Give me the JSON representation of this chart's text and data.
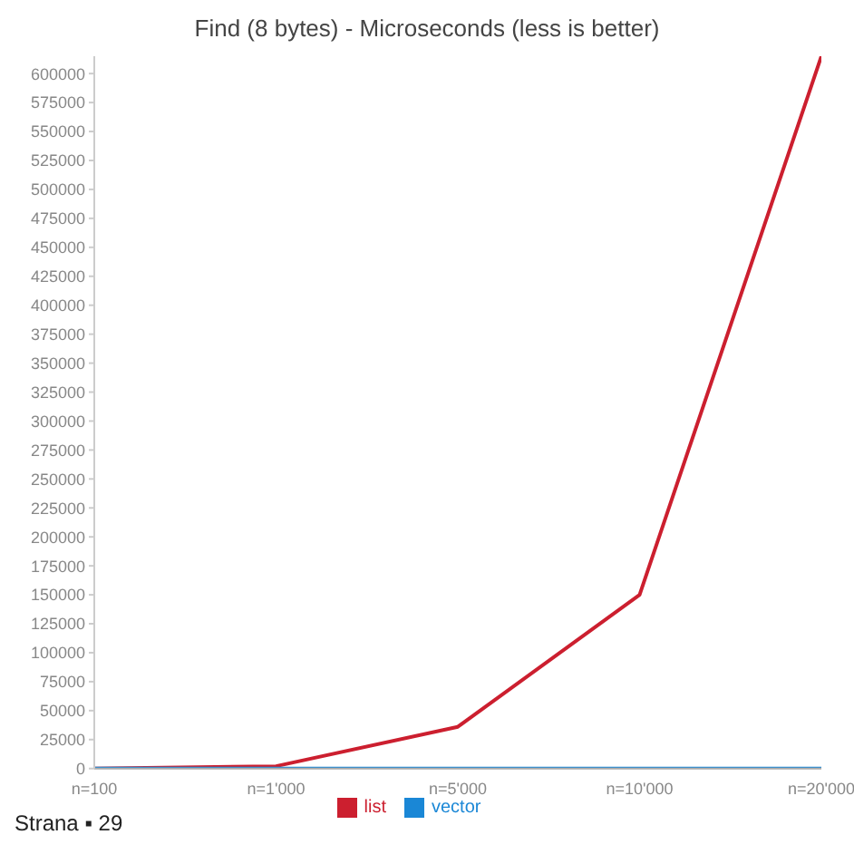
{
  "chart_data": {
    "type": "line",
    "title": "Find (8 bytes) - Microseconds (less is better)",
    "categories": [
      "n=100",
      "n=1'000",
      "n=5'000",
      "n=10'000",
      "n=20'000"
    ],
    "series": [
      {
        "name": "list",
        "color": "#cc1f2f",
        "values": [
          0,
          2000,
          36000,
          150000,
          615000
        ]
      },
      {
        "name": "vector",
        "color": "#1a87d6",
        "values": [
          0,
          0,
          0,
          0,
          0
        ]
      }
    ],
    "ylim": [
      0,
      615000
    ],
    "yticks": [
      0,
      25000,
      50000,
      75000,
      100000,
      125000,
      150000,
      175000,
      200000,
      225000,
      250000,
      275000,
      300000,
      325000,
      350000,
      375000,
      400000,
      425000,
      450000,
      475000,
      500000,
      525000,
      550000,
      575000,
      600000
    ],
    "grid": false,
    "legend": "bottom",
    "marker": "none",
    "line_style": "solid",
    "annotations": [
      "Strana ▪ 29"
    ]
  }
}
